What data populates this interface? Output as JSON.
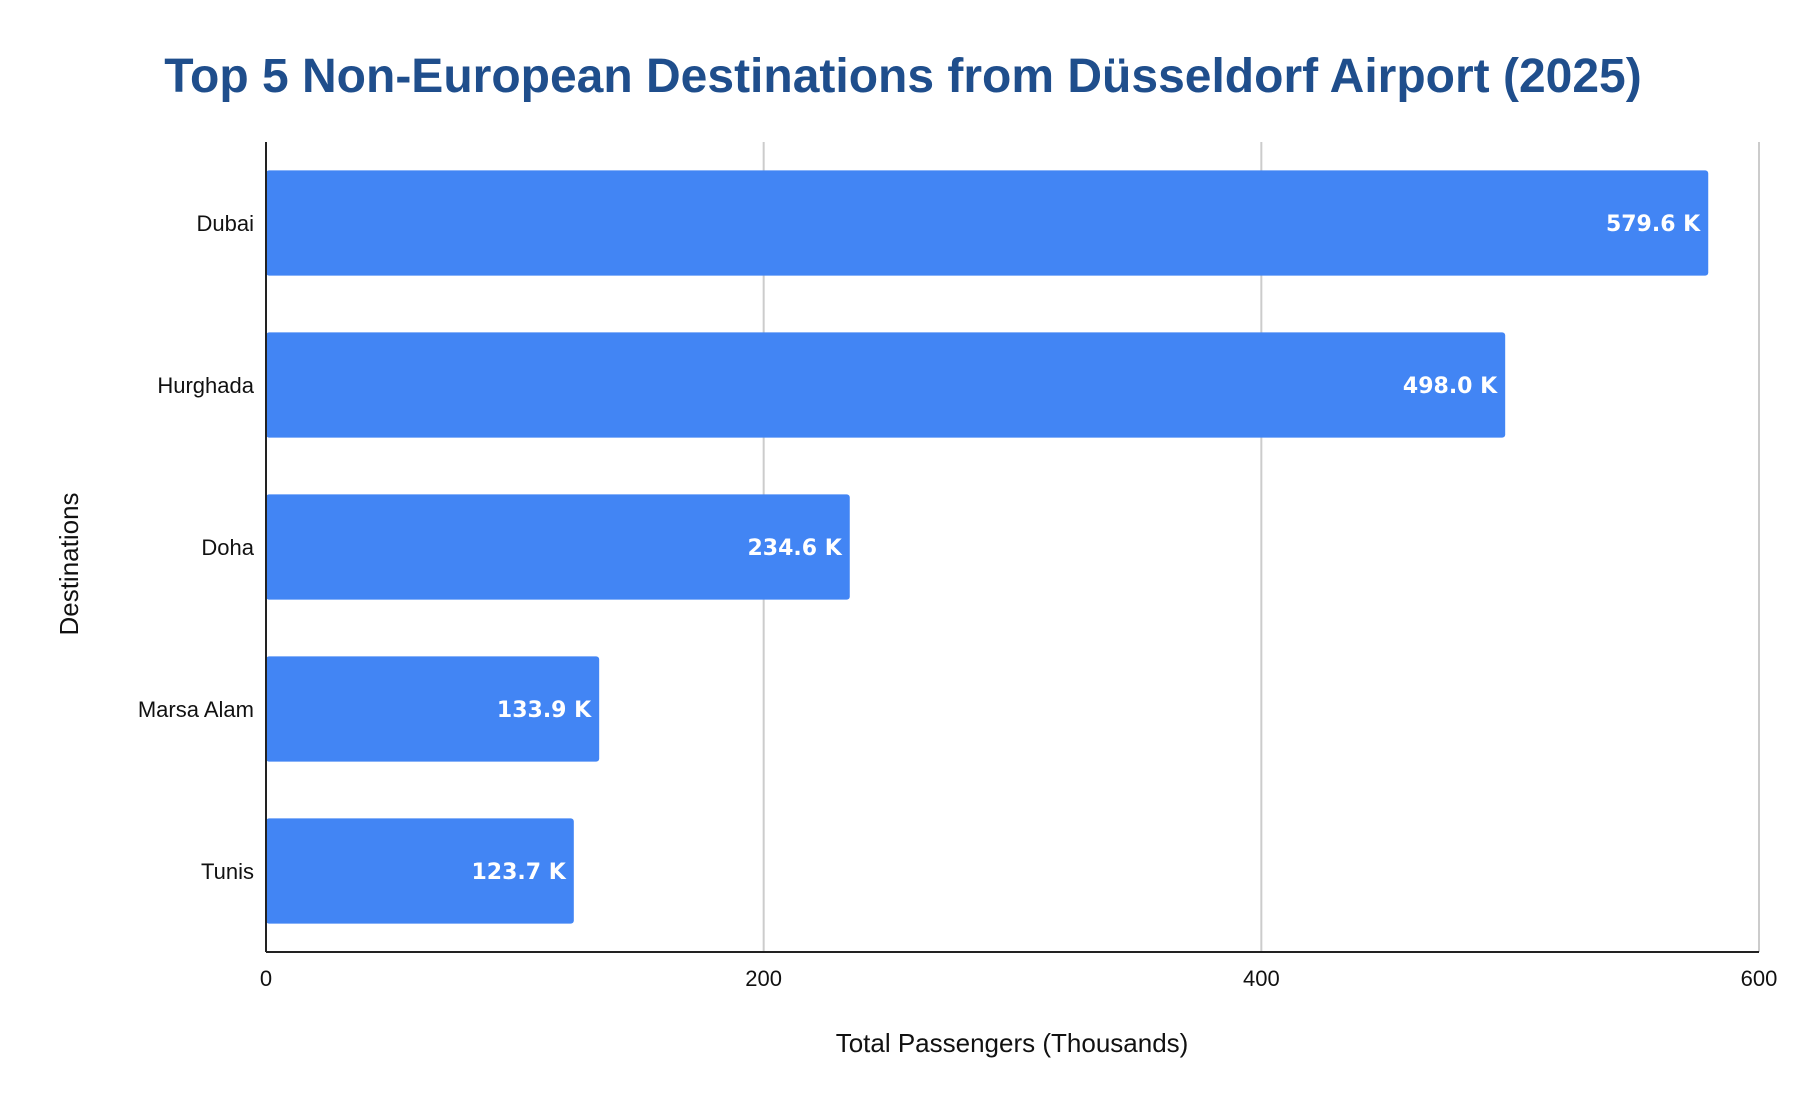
{
  "chart_data": {
    "type": "bar",
    "orientation": "horizontal",
    "title": "Top 5 Non-European Destinations from Düsseldorf Airport (2025)",
    "xlabel": "Total Passengers (Thousands)",
    "ylabel": "Destinations",
    "categories": [
      "Dubai",
      "Hurghada",
      "Doha",
      "Marsa Alam",
      "Tunis"
    ],
    "values": [
      579.6,
      498.0,
      234.6,
      133.9,
      123.7
    ],
    "data_labels": [
      "579.6 K",
      "498.0 K",
      "234.6 K",
      "133.9 K",
      "123.7 K"
    ],
    "xlim": [
      0,
      600
    ],
    "xticks": [
      0,
      200,
      400,
      600
    ],
    "xtick_labels": [
      "0",
      "200",
      "400",
      "600"
    ],
    "grid": "vertical",
    "legend": "none",
    "bar_color": "#4285f4",
    "title_color": "#1f4e8c",
    "grid_color": "#cccccc"
  }
}
